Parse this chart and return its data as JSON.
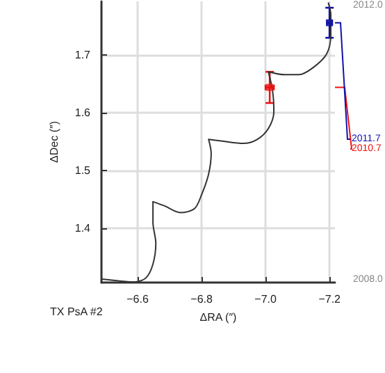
{
  "chart_data": {
    "type": "line",
    "xlabel": "ΔRA (″)",
    "ylabel": "ΔDec (″)",
    "xlim": [
      -6.487,
      -7.217
    ],
    "xticks": [
      {
        "value": -6.6,
        "label": "−6.6"
      },
      {
        "value": -6.8,
        "label": "−6.8"
      },
      {
        "value": -7.0,
        "label": "−7.0"
      },
      {
        "value": -7.2,
        "label": "−7.2"
      }
    ],
    "ylim": [
      1.306,
      1.793
    ],
    "yticks": [
      1.4,
      1.5,
      1.6,
      1.7
    ],
    "grid": true,
    "annotations": [
      "TX PsA #2",
      "2012.0",
      "2008.0"
    ],
    "series": [
      {
        "color": "#333333",
        "marker": "none",
        "x": [
          -6.487,
          -6.539,
          -6.591,
          -6.626,
          -6.648,
          -6.657,
          -6.648,
          -6.648,
          -6.683,
          -6.735,
          -6.778,
          -6.8,
          -6.822,
          -6.83,
          -6.822,
          -6.865,
          -6.93,
          -6.974,
          -7.009,
          -7.026,
          -7.022,
          -7.009,
          -7.061,
          -7.104,
          -7.148,
          -7.191,
          -7.204,
          -7.204,
          -7.196
        ],
        "values": [
          1.312,
          1.309,
          1.307,
          1.314,
          1.338,
          1.374,
          1.41,
          1.446,
          1.439,
          1.427,
          1.434,
          1.458,
          1.494,
          1.53,
          1.554,
          1.551,
          1.547,
          1.554,
          1.573,
          1.602,
          1.638,
          1.671,
          1.666,
          1.666,
          1.678,
          1.702,
          1.734,
          1.77,
          1.791
        ]
      },
      {
        "type": "scatter",
        "name": "2010.7",
        "color": "#ee1111",
        "x": [
          -7.013
        ],
        "values": [
          1.644
        ],
        "errors": [
          0.027
        ],
        "xerrors": [
          0.013
        ]
      },
      {
        "type": "scatter",
        "name": "2011.7",
        "color": "#1111aa",
        "x": [
          -7.2
        ],
        "values": [
          1.756
        ],
        "errors": [
          0.026
        ],
        "xerrors": [
          0.008
        ]
      }
    ]
  }
}
